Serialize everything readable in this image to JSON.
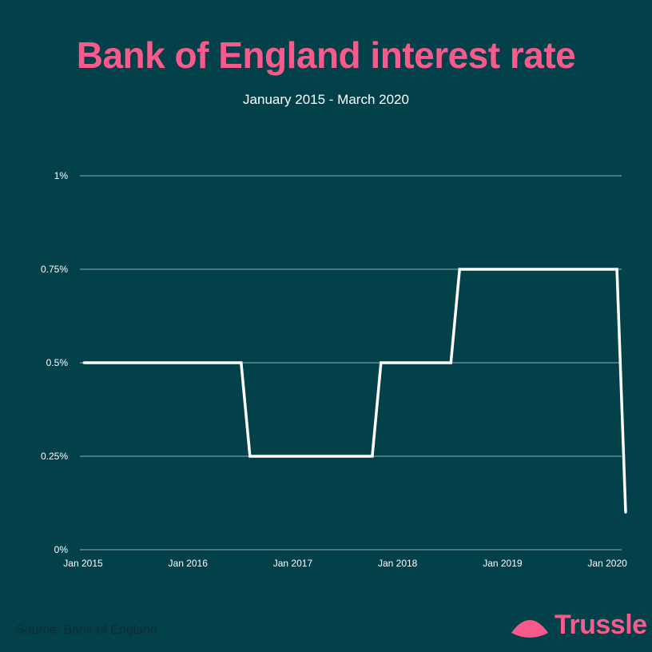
{
  "header": {
    "title": "Bank of England interest rate",
    "subtitle": "January 2015 - March 2020"
  },
  "footer": {
    "source": "Source: Bank of England",
    "brand": "Trussle"
  },
  "colors": {
    "background": "#03414a",
    "accent": "#f95a8c",
    "line": "#ffffff",
    "grid": "#8fb0b5"
  },
  "chart_data": {
    "type": "line",
    "title": "Bank of England interest rate",
    "subtitle": "January 2015 - March 2020",
    "xlabel": "",
    "ylabel": "",
    "xlim": [
      "2015-01",
      "2020-03"
    ],
    "ylim": [
      0,
      1
    ],
    "y_ticks": [
      0,
      0.25,
      0.5,
      0.75,
      1
    ],
    "y_tick_labels": [
      "0%",
      "0.25%",
      "0.5%",
      "0.75%",
      "1%"
    ],
    "x_ticks": [
      "2015-01",
      "2016-01",
      "2017-01",
      "2018-01",
      "2019-01",
      "2020-01"
    ],
    "x_tick_labels": [
      "Jan 2015",
      "Jan 2016",
      "Jan 2017",
      "Jan 2018",
      "Jan 2019",
      "Jan 2020"
    ],
    "grid": true,
    "series": [
      {
        "values": [
          {
            "x": "2015-01",
            "y": 0.5
          },
          {
            "x": "2016-07",
            "y": 0.5
          },
          {
            "x": "2016-08",
            "y": 0.25
          },
          {
            "x": "2017-10",
            "y": 0.25
          },
          {
            "x": "2017-11",
            "y": 0.5
          },
          {
            "x": "2018-07",
            "y": 0.5
          },
          {
            "x": "2018-08",
            "y": 0.75
          },
          {
            "x": "2020-02",
            "y": 0.75
          },
          {
            "x": "2020-03",
            "y": 0.1
          }
        ]
      }
    ]
  }
}
